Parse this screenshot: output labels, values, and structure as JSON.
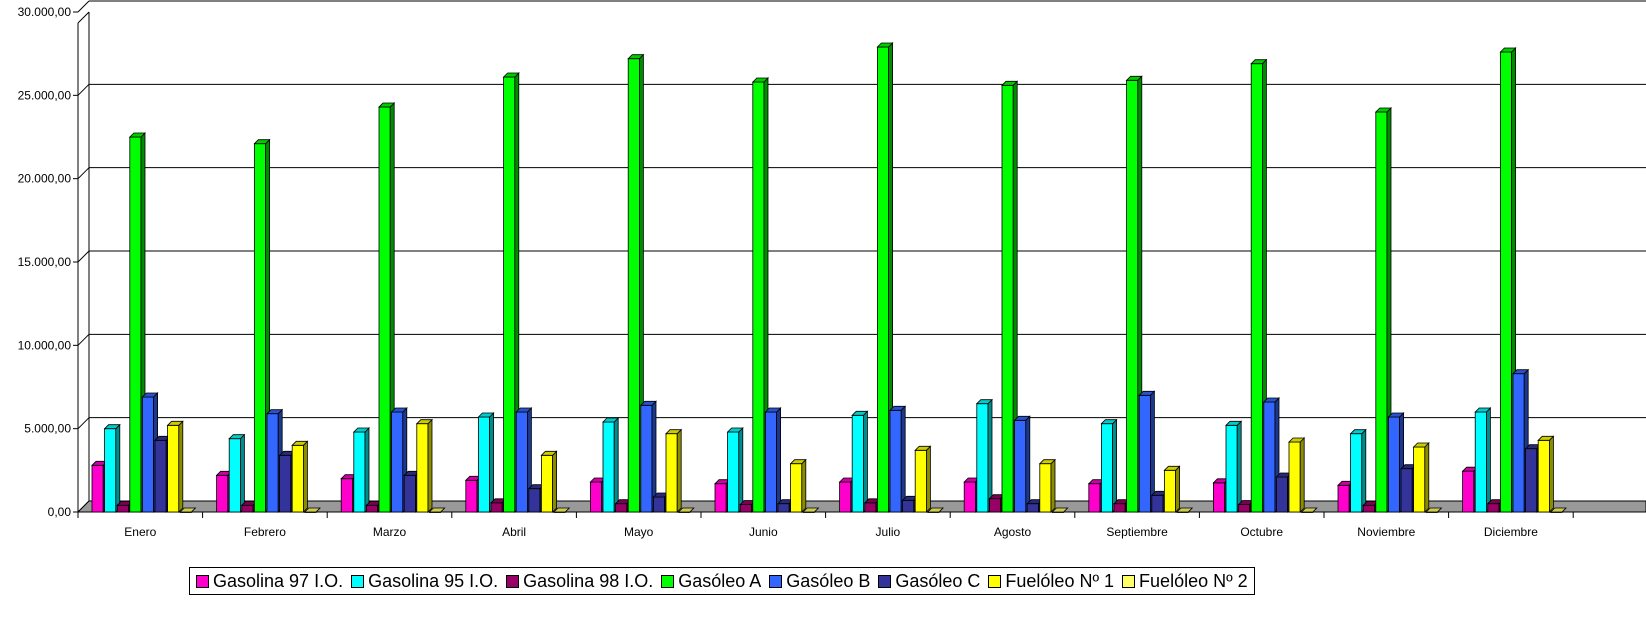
{
  "chart_data": {
    "type": "bar",
    "title": "",
    "xlabel": "",
    "ylabel": "",
    "ylim": [
      0,
      30000
    ],
    "yticks": [
      "0,00",
      "5.000,00",
      "10.000,00",
      "15.000,00",
      "20.000,00",
      "25.000,00",
      "30.000,00"
    ],
    "ytick_values": [
      0,
      5000,
      10000,
      15000,
      20000,
      25000,
      30000
    ],
    "grid": true,
    "legend_position": "bottom",
    "categories": [
      "Enero",
      "Febrero",
      "Marzo",
      "Abril",
      "Mayo",
      "Junio",
      "Julio",
      "Agosto",
      "Septiembre",
      "Octubre",
      "Noviembre",
      "Diciembre"
    ],
    "series": [
      {
        "name": "Gasolina 97 I.O.",
        "color": "#ff00cc",
        "values": [
          2800,
          2200,
          2000,
          1900,
          1800,
          1700,
          1800,
          1800,
          1700,
          1750,
          1600,
          2450
        ]
      },
      {
        "name": "Gasolina 95 I.O.",
        "color": "#00ffff",
        "values": [
          5000,
          4400,
          4800,
          5700,
          5400,
          4800,
          5800,
          6500,
          5300,
          5200,
          4700,
          6000
        ]
      },
      {
        "name": "Gasolina 98 I.O.",
        "color": "#990066",
        "values": [
          400,
          400,
          400,
          550,
          500,
          450,
          550,
          800,
          500,
          450,
          400,
          500
        ]
      },
      {
        "name": "Gasóleo A",
        "color": "#00ff00",
        "values": [
          22500,
          22100,
          24300,
          26100,
          27200,
          25800,
          27900,
          25600,
          25900,
          26900,
          24000,
          27600
        ]
      },
      {
        "name": "Gasóleo B",
        "color": "#3366ff",
        "values": [
          6900,
          5900,
          6000,
          6000,
          6400,
          6000,
          6100,
          5500,
          7000,
          6600,
          5700,
          8300
        ]
      },
      {
        "name": "Gasóleo C",
        "color": "#333399",
        "values": [
          4300,
          3400,
          2200,
          1400,
          900,
          500,
          700,
          500,
          1000,
          2100,
          2600,
          3800
        ]
      },
      {
        "name": "Fuelóleo Nº 1",
        "color": "#ffff00",
        "values": [
          5200,
          4000,
          5300,
          3400,
          4700,
          2900,
          3700,
          2900,
          2500,
          4200,
          3900,
          4300
        ]
      },
      {
        "name": "Fuelóleo Nº 2",
        "color": "#ffff66",
        "values": [
          0,
          0,
          0,
          0,
          0,
          0,
          0,
          0,
          0,
          0,
          0,
          0
        ]
      }
    ]
  }
}
